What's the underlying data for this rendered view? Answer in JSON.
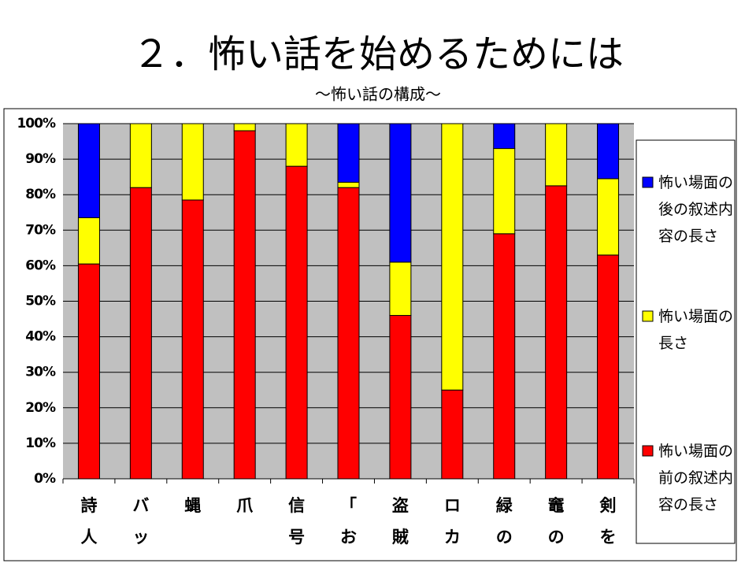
{
  "chart_data": {
    "type": "stacked_bar",
    "title": "２．怖い話を始めるためには",
    "subtitle": "～怖い話の構成～",
    "categories": [
      "詩人",
      "バッ",
      "蝿",
      "爪",
      "信号",
      "「お",
      "盗賊",
      "ロカ",
      "緑の",
      "竈の",
      "剣を"
    ],
    "series": [
      {
        "name": "怖い場面の前の叙述内容の長さ",
        "color": "#ff0000",
        "values": [
          60.5,
          82,
          78.5,
          98,
          88,
          82,
          46,
          25,
          69,
          82.5,
          63
        ]
      },
      {
        "name": "怖い場面の長さ",
        "color": "#ffff00",
        "values": [
          13,
          18,
          21.5,
          2,
          12,
          1.5,
          15,
          75,
          24,
          17.5,
          21.5
        ]
      },
      {
        "name": "怖い場面の後の叙述内容の長さ",
        "color": "#0000ff",
        "values": [
          26.5,
          0,
          0,
          0,
          0,
          16.5,
          39,
          0,
          7,
          0,
          15.5
        ]
      }
    ],
    "ylim": [
      0,
      100
    ],
    "yticks": [
      {
        "value": 0,
        "label": "0%"
      },
      {
        "value": 10,
        "label": "10%"
      },
      {
        "value": 20,
        "label": "20%"
      },
      {
        "value": 30,
        "label": "30%"
      },
      {
        "value": 40,
        "label": "40%"
      },
      {
        "value": 50,
        "label": "50%"
      },
      {
        "value": 60,
        "label": "60%"
      },
      {
        "value": 70,
        "label": "70%"
      },
      {
        "value": 80,
        "label": "80%"
      },
      {
        "value": 90,
        "label": "90%"
      },
      {
        "value": 100,
        "label": "100%"
      }
    ],
    "grid": true,
    "legend": "right"
  }
}
